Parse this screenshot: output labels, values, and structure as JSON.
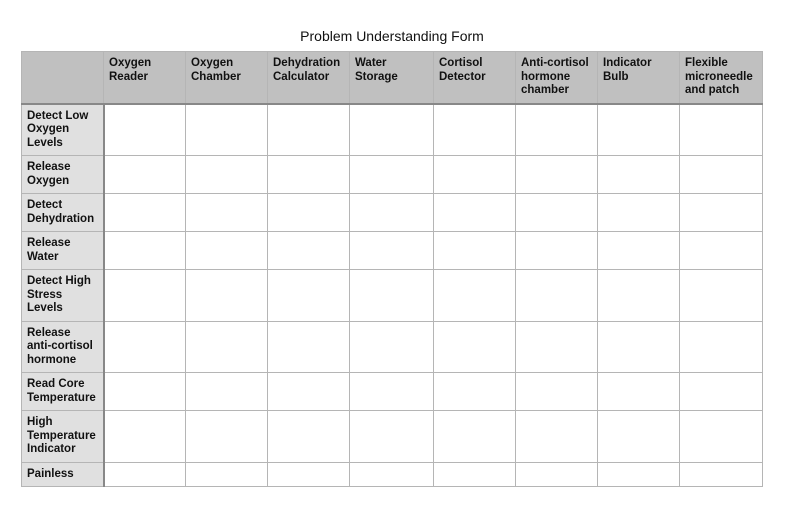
{
  "title": "Problem Understanding Form",
  "columns": [
    "",
    "Oxygen Reader",
    "Oxygen Chamber",
    "Dehydration Calculator",
    "Water Storage",
    "Cortisol Detector",
    "Anti-cortisol hormone chamber",
    "Indicator Bulb",
    "Flexible microneedle and patch"
  ],
  "rows": [
    "Detect Low Oxygen Levels",
    "Release Oxygen",
    "Detect Dehydration",
    "Release Water",
    "Detect High Stress Levels",
    "Release anti-cortisol hormone",
    "Read Core Temperature",
    "High Temperature Indicator",
    "Painless"
  ],
  "colors": {
    "header_bg": "#c0c0c0",
    "row_header_bg": "#e0e0e0",
    "border": "#b5b5b5"
  }
}
